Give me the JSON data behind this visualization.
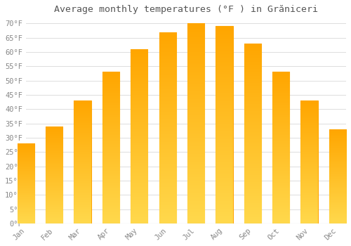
{
  "title": "Average monthly temperatures (°F ) in Grăniceri",
  "months": [
    "Jan",
    "Feb",
    "Mar",
    "Apr",
    "May",
    "Jun",
    "Jul",
    "Aug",
    "Sep",
    "Oct",
    "Nov",
    "Dec"
  ],
  "values": [
    28,
    34,
    43,
    53,
    61,
    67,
    70,
    69,
    63,
    53,
    43,
    33
  ],
  "bar_color_top": "#FFA500",
  "bar_color_bottom": "#FFD966",
  "background_color": "#FFFFFF",
  "grid_color": "#DDDDDD",
  "text_color": "#888888",
  "title_color": "#555555",
  "ylim": [
    0,
    72
  ],
  "yticks": [
    0,
    5,
    10,
    15,
    20,
    25,
    30,
    35,
    40,
    45,
    50,
    55,
    60,
    65,
    70
  ],
  "font_family": "monospace",
  "bar_width": 0.6
}
